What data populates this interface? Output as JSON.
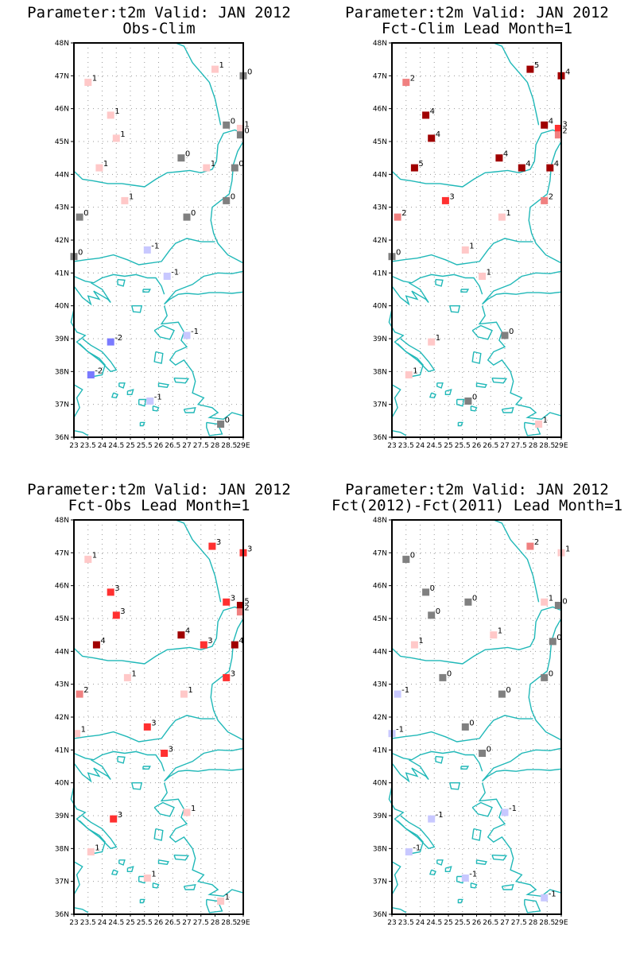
{
  "colors": {
    "coast": "#20b8b8",
    "v-2": "#7a7aff",
    "v-1": "#c8c8ff",
    "v0": "#808080",
    "v1": "#ffc8c8",
    "v2": "#f08080",
    "v3": "#ff3030",
    "v4": "#a00000",
    "v5": "#a00000"
  },
  "lat_labels": [
    "48N",
    "47N",
    "46N",
    "45N",
    "44N",
    "43N",
    "42N",
    "41N",
    "40N",
    "39N",
    "38N",
    "37N",
    "36N"
  ],
  "lon_labels": [
    "23",
    "23.5",
    "24",
    "24.5",
    "25",
    "25.5",
    "26",
    "26.5",
    "27",
    "27.5",
    "28",
    "28.5",
    "29E"
  ],
  "panels": [
    {
      "title1": "Parameter:t2m Valid: JAN 2012",
      "title2": "Obs-Clim",
      "stations": [
        {
          "lon": 23.5,
          "lat": 46.8,
          "v": "1"
        },
        {
          "lon": 24.3,
          "lat": 45.8,
          "v": "1"
        },
        {
          "lon": 24.5,
          "lat": 45.1,
          "v": "1"
        },
        {
          "lon": 23.9,
          "lat": 44.2,
          "v": "1"
        },
        {
          "lon": 24.8,
          "lat": 43.2,
          "v": "1"
        },
        {
          "lon": 23.2,
          "lat": 42.7,
          "v": "0"
        },
        {
          "lon": 23.0,
          "lat": 41.5,
          "v": "0"
        },
        {
          "lon": 25.6,
          "lat": 41.7,
          "v": "-1"
        },
        {
          "lon": 26.3,
          "lat": 40.9,
          "v": "-1"
        },
        {
          "lon": 26.8,
          "lat": 44.5,
          "v": "0"
        },
        {
          "lon": 27.0,
          "lat": 42.7,
          "v": "0"
        },
        {
          "lon": 27.7,
          "lat": 44.2,
          "v": "1"
        },
        {
          "lon": 28.0,
          "lat": 47.2,
          "v": "1"
        },
        {
          "lon": 28.4,
          "lat": 45.5,
          "v": "0"
        },
        {
          "lon": 28.9,
          "lat": 45.4,
          "v": "1"
        },
        {
          "lon": 28.9,
          "lat": 45.2,
          "v": "0"
        },
        {
          "lon": 28.7,
          "lat": 44.2,
          "v": "0"
        },
        {
          "lon": 28.4,
          "lat": 43.2,
          "v": "0"
        },
        {
          "lon": 29.0,
          "lat": 47.0,
          "v": "0"
        },
        {
          "lon": 24.3,
          "lat": 38.9,
          "v": "-2"
        },
        {
          "lon": 23.6,
          "lat": 37.9,
          "v": "-2"
        },
        {
          "lon": 27.0,
          "lat": 39.1,
          "v": "-1"
        },
        {
          "lon": 25.7,
          "lat": 37.1,
          "v": "-1"
        },
        {
          "lon": 28.2,
          "lat": 36.4,
          "v": "0"
        }
      ]
    },
    {
      "title1": "Parameter:t2m Valid: JAN 2012",
      "title2": "Fct-Clim Lead Month=1",
      "stations": [
        {
          "lon": 23.5,
          "lat": 46.8,
          "v": "2"
        },
        {
          "lon": 24.2,
          "lat": 45.8,
          "v": "4"
        },
        {
          "lon": 24.4,
          "lat": 45.1,
          "v": "4"
        },
        {
          "lon": 23.8,
          "lat": 44.2,
          "v": "5"
        },
        {
          "lon": 24.9,
          "lat": 43.2,
          "v": "3"
        },
        {
          "lon": 23.2,
          "lat": 42.7,
          "v": "2"
        },
        {
          "lon": 23.0,
          "lat": 41.5,
          "v": "0"
        },
        {
          "lon": 25.6,
          "lat": 41.7,
          "v": "1"
        },
        {
          "lon": 26.2,
          "lat": 40.9,
          "v": "1"
        },
        {
          "lon": 26.8,
          "lat": 44.5,
          "v": "4"
        },
        {
          "lon": 26.9,
          "lat": 42.7,
          "v": "1"
        },
        {
          "lon": 27.6,
          "lat": 44.2,
          "v": "4"
        },
        {
          "lon": 27.9,
          "lat": 47.2,
          "v": "5"
        },
        {
          "lon": 28.4,
          "lat": 45.5,
          "v": "4"
        },
        {
          "lon": 28.9,
          "lat": 45.4,
          "v": "3"
        },
        {
          "lon": 28.9,
          "lat": 45.2,
          "v": "2"
        },
        {
          "lon": 28.6,
          "lat": 44.2,
          "v": "4"
        },
        {
          "lon": 28.4,
          "lat": 43.2,
          "v": "2"
        },
        {
          "lon": 29.0,
          "lat": 47.0,
          "v": "4"
        },
        {
          "lon": 24.4,
          "lat": 38.9,
          "v": "1"
        },
        {
          "lon": 23.6,
          "lat": 37.9,
          "v": "1"
        },
        {
          "lon": 27.0,
          "lat": 39.1,
          "v": "0"
        },
        {
          "lon": 25.7,
          "lat": 37.1,
          "v": "0"
        },
        {
          "lon": 28.2,
          "lat": 36.4,
          "v": "1"
        }
      ]
    },
    {
      "title1": "Parameter:t2m Valid: JAN 2012",
      "title2": "Fct-Obs Lead Month=1",
      "stations": [
        {
          "lon": 23.5,
          "lat": 46.8,
          "v": "1"
        },
        {
          "lon": 24.3,
          "lat": 45.8,
          "v": "3"
        },
        {
          "lon": 24.5,
          "lat": 45.1,
          "v": "3"
        },
        {
          "lon": 23.8,
          "lat": 44.2,
          "v": "4"
        },
        {
          "lon": 24.9,
          "lat": 43.2,
          "v": "1"
        },
        {
          "lon": 23.2,
          "lat": 42.7,
          "v": "2"
        },
        {
          "lon": 23.1,
          "lat": 41.5,
          "v": "1"
        },
        {
          "lon": 25.6,
          "lat": 41.7,
          "v": "3"
        },
        {
          "lon": 26.2,
          "lat": 40.9,
          "v": "3"
        },
        {
          "lon": 26.8,
          "lat": 44.5,
          "v": "4"
        },
        {
          "lon": 26.9,
          "lat": 42.7,
          "v": "1"
        },
        {
          "lon": 27.6,
          "lat": 44.2,
          "v": "3"
        },
        {
          "lon": 27.9,
          "lat": 47.2,
          "v": "3"
        },
        {
          "lon": 28.4,
          "lat": 45.5,
          "v": "3"
        },
        {
          "lon": 28.9,
          "lat": 45.4,
          "v": "5"
        },
        {
          "lon": 28.9,
          "lat": 45.2,
          "v": "2"
        },
        {
          "lon": 28.7,
          "lat": 44.2,
          "v": "4"
        },
        {
          "lon": 28.4,
          "lat": 43.2,
          "v": "3"
        },
        {
          "lon": 29.0,
          "lat": 47.0,
          "v": "3"
        },
        {
          "lon": 24.4,
          "lat": 38.9,
          "v": "3"
        },
        {
          "lon": 23.6,
          "lat": 37.9,
          "v": "1"
        },
        {
          "lon": 27.0,
          "lat": 39.1,
          "v": "1"
        },
        {
          "lon": 25.6,
          "lat": 37.1,
          "v": "1"
        },
        {
          "lon": 28.2,
          "lat": 36.4,
          "v": "1"
        }
      ]
    },
    {
      "title1": "Parameter:t2m Valid: JAN 2012",
      "title2": "Fct(2012)-Fct(2011) Lead Month=1",
      "stations": [
        {
          "lon": 23.5,
          "lat": 46.8,
          "v": "0"
        },
        {
          "lon": 24.2,
          "lat": 45.8,
          "v": "0"
        },
        {
          "lon": 24.4,
          "lat": 45.1,
          "v": "0"
        },
        {
          "lon": 23.8,
          "lat": 44.2,
          "v": "1"
        },
        {
          "lon": 24.8,
          "lat": 43.2,
          "v": "0"
        },
        {
          "lon": 23.2,
          "lat": 42.7,
          "v": "-1"
        },
        {
          "lon": 23.0,
          "lat": 41.5,
          "v": "-1"
        },
        {
          "lon": 25.6,
          "lat": 41.7,
          "v": "0"
        },
        {
          "lon": 26.2,
          "lat": 40.9,
          "v": "0"
        },
        {
          "lon": 25.7,
          "lat": 45.5,
          "v": "0"
        },
        {
          "lon": 26.6,
          "lat": 44.5,
          "v": "1"
        },
        {
          "lon": 26.9,
          "lat": 42.7,
          "v": "0"
        },
        {
          "lon": 27.9,
          "lat": 47.2,
          "v": "2"
        },
        {
          "lon": 28.4,
          "lat": 45.5,
          "v": "1"
        },
        {
          "lon": 28.9,
          "lat": 45.4,
          "v": "0"
        },
        {
          "lon": 28.7,
          "lat": 44.3,
          "v": "0"
        },
        {
          "lon": 28.4,
          "lat": 43.2,
          "v": "0"
        },
        {
          "lon": 29.0,
          "lat": 47.0,
          "v": "1"
        },
        {
          "lon": 24.4,
          "lat": 38.9,
          "v": "-1"
        },
        {
          "lon": 23.6,
          "lat": 37.9,
          "v": "-1"
        },
        {
          "lon": 27.0,
          "lat": 39.1,
          "v": "-1"
        },
        {
          "lon": 25.6,
          "lat": 37.1,
          "v": "-1"
        },
        {
          "lon": 28.4,
          "lat": 36.5,
          "v": "-1"
        }
      ]
    }
  ]
}
